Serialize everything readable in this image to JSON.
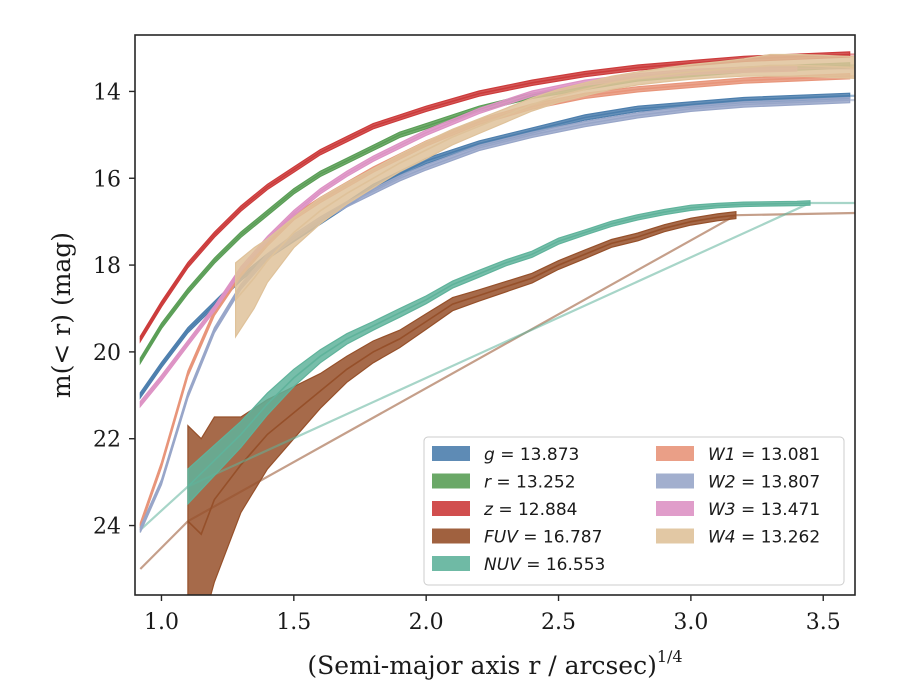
{
  "chart_data": {
    "type": "line",
    "title": "",
    "xlabel": "(Semi-major axis r / arcsec)",
    "xlabel_sup": "1/4",
    "ylabel": "m(< r) (mag)",
    "xlim": [
      0.9,
      3.62
    ],
    "ylim": [
      25.6,
      12.7
    ],
    "y_inverted": true,
    "xticks": [
      "1.0",
      "1.5",
      "2.0",
      "2.5",
      "3.0",
      "3.5"
    ],
    "yticks": [
      "14",
      "16",
      "18",
      "20",
      "22",
      "24"
    ],
    "legend_position": "lower-right",
    "legend_columns": 2,
    "series": [
      {
        "name": "g = 13.873",
        "color": "#4c7ead",
        "x": [
          0.92,
          1.0,
          1.1,
          1.2,
          1.3,
          1.4,
          1.5,
          1.6,
          1.7,
          1.8,
          1.9,
          2.0,
          2.2,
          2.4,
          2.6,
          2.8,
          3.0,
          3.2,
          3.4,
          3.6
        ],
        "y": [
          21.0,
          20.3,
          19.5,
          18.9,
          18.3,
          17.8,
          17.4,
          17.0,
          16.6,
          16.2,
          15.9,
          15.6,
          15.2,
          14.9,
          14.6,
          14.4,
          14.3,
          14.2,
          14.15,
          14.1
        ],
        "halfwidth": 0.06,
        "ext_x": [
          3.6,
          3.62
        ],
        "ext_y": [
          14.1,
          14.1
        ]
      },
      {
        "name": "r = 13.252",
        "color": "#5a9e56",
        "x": [
          0.92,
          1.0,
          1.1,
          1.2,
          1.3,
          1.4,
          1.5,
          1.6,
          1.7,
          1.8,
          1.9,
          2.0,
          2.2,
          2.4,
          2.6,
          2.8,
          3.0,
          3.2,
          3.4,
          3.6
        ],
        "y": [
          20.2,
          19.4,
          18.6,
          17.9,
          17.3,
          16.8,
          16.3,
          15.9,
          15.6,
          15.3,
          15.0,
          14.8,
          14.4,
          14.1,
          13.9,
          13.7,
          13.6,
          13.5,
          13.45,
          13.4
        ],
        "halfwidth": 0.06,
        "ext_x": [
          3.6,
          3.62
        ],
        "ext_y": [
          13.4,
          13.4
        ]
      },
      {
        "name": "z = 12.884",
        "color": "#cc3b3b",
        "x": [
          0.92,
          1.0,
          1.1,
          1.2,
          1.3,
          1.4,
          1.5,
          1.6,
          1.7,
          1.8,
          1.9,
          2.0,
          2.2,
          2.4,
          2.6,
          2.8,
          3.0,
          3.2,
          3.4,
          3.6
        ],
        "y": [
          19.7,
          18.9,
          18.0,
          17.3,
          16.7,
          16.2,
          15.8,
          15.4,
          15.1,
          14.8,
          14.6,
          14.4,
          14.05,
          13.8,
          13.6,
          13.45,
          13.35,
          13.25,
          13.2,
          13.15
        ],
        "halfwidth": 0.06,
        "ext_x": [
          3.6,
          3.62
        ],
        "ext_y": [
          13.15,
          13.15
        ]
      },
      {
        "name": "FUV = 16.787",
        "color": "#96502a",
        "x": [
          1.1,
          1.15,
          1.2,
          1.3,
          1.4,
          1.5,
          1.6,
          1.7,
          1.8,
          1.9,
          2.0,
          2.1,
          2.2,
          2.3,
          2.4,
          2.5,
          2.6,
          2.7,
          2.8,
          2.9,
          3.0,
          3.1,
          3.17
        ],
        "y": [
          23.9,
          24.2,
          23.4,
          22.6,
          21.9,
          21.4,
          20.9,
          20.4,
          20.0,
          19.7,
          19.3,
          18.9,
          18.7,
          18.5,
          18.3,
          18.0,
          17.75,
          17.5,
          17.35,
          17.15,
          17.0,
          16.9,
          16.85
        ],
        "yerr": [
          2.2,
          2.2,
          1.9,
          1.1,
          0.8,
          0.6,
          0.4,
          0.3,
          0.25,
          0.2,
          0.18,
          0.15,
          0.13,
          0.12,
          0.11,
          0.1,
          0.1,
          0.09,
          0.09,
          0.08,
          0.08,
          0.08,
          0.08
        ],
        "ext_x": [
          0.92,
          1.1,
          3.17,
          3.62
        ],
        "ext_y": [
          25.0,
          23.9,
          16.85,
          16.8
        ]
      },
      {
        "name": "NUV = 16.553",
        "color": "#5fb39b",
        "x": [
          1.1,
          1.2,
          1.3,
          1.4,
          1.5,
          1.6,
          1.7,
          1.8,
          1.9,
          2.0,
          2.1,
          2.2,
          2.3,
          2.4,
          2.5,
          2.6,
          2.7,
          2.8,
          2.9,
          3.0,
          3.1,
          3.2,
          3.3,
          3.4,
          3.45
        ],
        "y": [
          23.1,
          22.5,
          21.9,
          21.2,
          20.6,
          20.1,
          19.7,
          19.4,
          19.1,
          18.8,
          18.45,
          18.2,
          17.95,
          17.75,
          17.45,
          17.25,
          17.05,
          16.9,
          16.78,
          16.68,
          16.63,
          16.6,
          16.59,
          16.58,
          16.57
        ],
        "yerr": [
          0.4,
          0.35,
          0.3,
          0.25,
          0.2,
          0.15,
          0.12,
          0.1,
          0.1,
          0.09,
          0.08,
          0.08,
          0.07,
          0.07,
          0.07,
          0.06,
          0.06,
          0.06,
          0.06,
          0.06,
          0.05,
          0.05,
          0.05,
          0.05,
          0.05
        ],
        "ext_x": [
          0.92,
          1.1,
          3.45,
          3.62
        ],
        "ext_y": [
          24.1,
          23.1,
          16.57,
          16.57
        ]
      },
      {
        "name": "W1 = 13.081",
        "color": "#e8957a",
        "x": [
          0.92,
          1.0,
          1.1,
          1.2,
          1.3,
          1.4,
          1.5,
          1.6,
          1.7,
          1.8,
          1.9,
          2.0,
          2.2,
          2.4,
          2.6,
          2.8,
          3.0,
          3.2,
          3.4,
          3.6
        ],
        "y": [
          24.0,
          22.6,
          20.5,
          19.1,
          18.2,
          17.5,
          16.9,
          16.5,
          16.15,
          15.8,
          15.5,
          15.2,
          14.7,
          14.35,
          14.1,
          13.95,
          13.85,
          13.75,
          13.7,
          13.65
        ],
        "halfwidth": 0.06,
        "ext_x": [
          3.6,
          3.62
        ],
        "ext_y": [
          13.65,
          13.65
        ]
      },
      {
        "name": "W2 = 13.807",
        "color": "#98a6c9",
        "x": [
          0.92,
          1.0,
          1.1,
          1.2,
          1.3,
          1.4,
          1.5,
          1.6,
          1.7,
          1.8,
          1.9,
          2.0,
          2.2,
          2.4,
          2.6,
          2.8,
          3.0,
          3.2,
          3.4,
          3.6
        ],
        "y": [
          24.1,
          23.0,
          21.0,
          19.5,
          18.5,
          17.8,
          17.35,
          16.95,
          16.6,
          16.3,
          16.0,
          15.75,
          15.3,
          15.0,
          14.75,
          14.55,
          14.4,
          14.3,
          14.25,
          14.2
        ],
        "halfwidth": 0.06,
        "ext_x": [
          3.6,
          3.62
        ],
        "ext_y": [
          14.2,
          14.2
        ]
      },
      {
        "name": "W3 = 13.471",
        "color": "#dd92c4",
        "x": [
          0.92,
          1.0,
          1.1,
          1.2,
          1.3,
          1.4,
          1.5,
          1.6,
          1.7,
          1.8,
          1.9,
          2.0,
          2.2,
          2.4,
          2.6,
          2.8,
          3.0,
          3.2,
          3.4
        ],
        "y": [
          21.2,
          20.6,
          19.8,
          19.0,
          18.1,
          17.4,
          16.8,
          16.3,
          15.9,
          15.55,
          15.25,
          14.95,
          14.45,
          14.05,
          13.8,
          13.65,
          13.55,
          13.5,
          13.47
        ],
        "halfwidth": 0.06,
        "ext_x": [
          3.4,
          3.62
        ],
        "ext_y": [
          13.47,
          13.47
        ]
      },
      {
        "name": "W4 = 13.262",
        "color": "#dfc29a",
        "x": [
          1.28,
          1.35,
          1.4,
          1.5,
          1.6,
          1.7,
          1.8,
          1.9,
          2.0,
          2.1,
          2.2,
          2.3,
          2.4,
          2.5,
          2.6,
          2.7,
          2.8,
          2.9,
          3.0,
          3.1,
          3.2,
          3.3,
          3.4,
          3.5,
          3.62
        ],
        "y": [
          18.8,
          18.3,
          17.9,
          17.25,
          16.75,
          16.35,
          16.0,
          15.65,
          15.35,
          15.05,
          14.8,
          14.55,
          14.3,
          14.1,
          13.95,
          13.8,
          13.7,
          13.62,
          13.55,
          13.5,
          13.45,
          13.4,
          13.4,
          13.42,
          13.45
        ],
        "yerr": [
          0.85,
          0.7,
          0.5,
          0.35,
          0.3,
          0.25,
          0.22,
          0.2,
          0.2,
          0.18,
          0.17,
          0.16,
          0.15,
          0.15,
          0.15,
          0.15,
          0.15,
          0.16,
          0.17,
          0.18,
          0.2,
          0.25,
          0.25,
          0.25,
          0.25
        ]
      }
    ]
  }
}
